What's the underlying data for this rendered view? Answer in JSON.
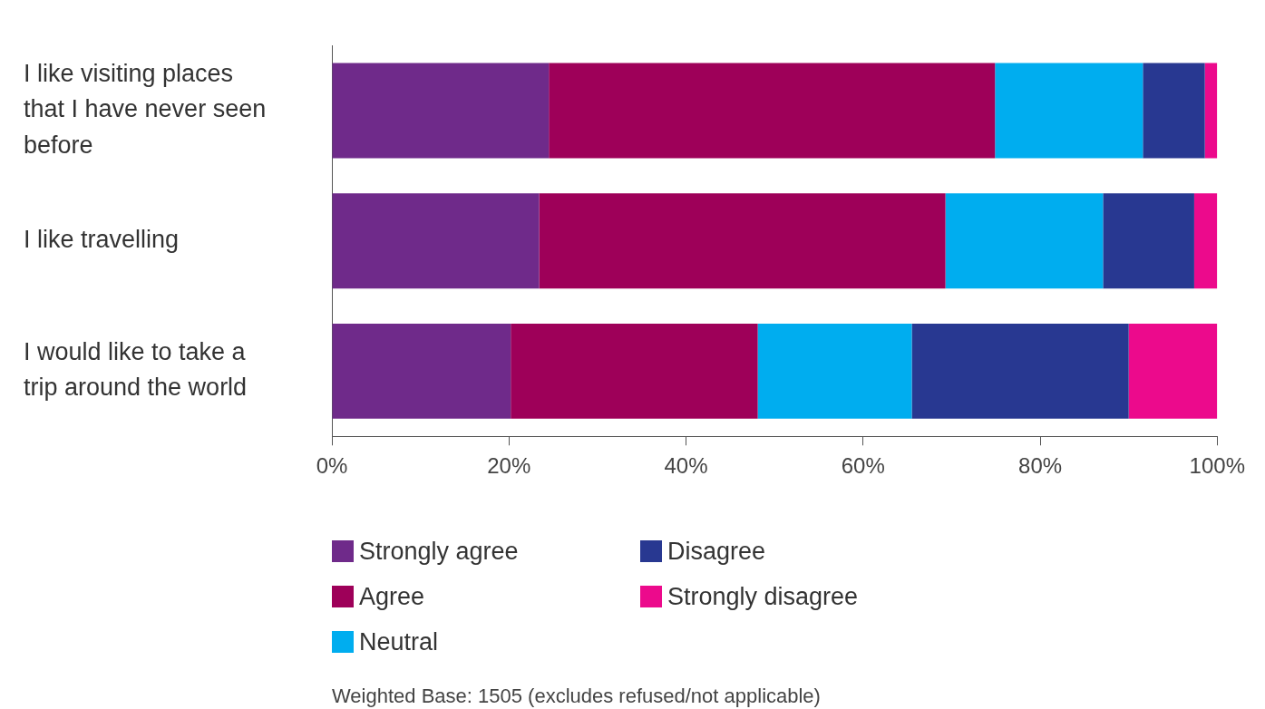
{
  "chart_data": {
    "type": "bar",
    "orientation": "horizontal",
    "stacked": true,
    "categories": [
      "I like visiting places that I have never seen before",
      "I like travelling",
      "I would like to take a trip around the world"
    ],
    "series": [
      {
        "name": "Strongly agree",
        "color": "#6f2a8a",
        "values": [
          24.5,
          23.4,
          20.2
        ]
      },
      {
        "name": "Agree",
        "color": "#9e0059",
        "values": [
          50.4,
          45.9,
          27.9
        ]
      },
      {
        "name": "Neutral",
        "color": "#00adef",
        "values": [
          16.7,
          17.8,
          17.4
        ]
      },
      {
        "name": "Disagree",
        "color": "#283891",
        "values": [
          7.0,
          10.3,
          24.5
        ]
      },
      {
        "name": "Strongly disagree",
        "color": "#ec0a8c",
        "values": [
          1.4,
          2.6,
          10.0
        ]
      }
    ],
    "xlim": [
      0,
      100
    ],
    "xticks": [
      {
        "value": 0,
        "label": "0%"
      },
      {
        "value": 20,
        "label": "20%"
      },
      {
        "value": 40,
        "label": "40%"
      },
      {
        "value": 60,
        "label": "60%"
      },
      {
        "value": 80,
        "label": "80%"
      },
      {
        "value": 100,
        "label": "100%"
      }
    ],
    "grid": false,
    "legend": "bottom",
    "annotations": [
      "Weighted Base: 1505 (excludes refused/not applicable)"
    ]
  }
}
